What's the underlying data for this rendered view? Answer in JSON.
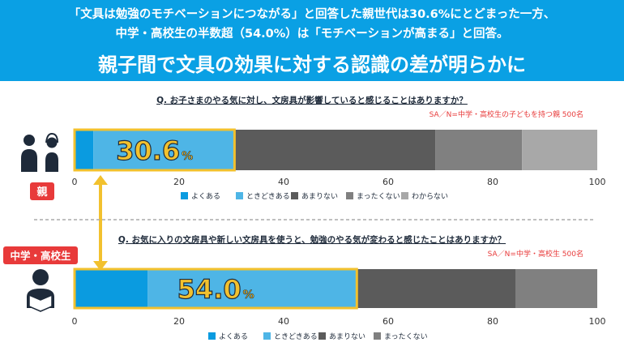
{
  "header": {
    "sub_line1": "「文具は勉強のモチベーションにつながる」と回答した親世代は30.6%にとどまった一方、",
    "sub_line2": "中学・高校生の半数超（54.0%）は「モチベーションが高まる」と回答。",
    "title": "親子間で文具の効果に対する認識の差が明らかに"
  },
  "colors": {
    "header_bg": "#0aa0e4",
    "series": [
      "#0a9be0",
      "#4eb5e6",
      "#5b5b5b",
      "#808080",
      "#a8a8a8"
    ],
    "highlight_border": "#f2c12e",
    "highlight_text": "#f2c12e",
    "badge_red": "#e83a3a"
  },
  "icons": {
    "parents": "parents-icon",
    "student": "student-reading-icon"
  },
  "chart_data": [
    {
      "type": "bar",
      "orientation": "horizontal-stacked",
      "question": "Q. お子さまのやる気に対し、文房具が影響していると感じることはありますか？",
      "note": "SA／N=中学・高校生の子どもを持つ親 500名",
      "group_label": "親",
      "xlim": [
        0,
        100
      ],
      "ticks": [
        "0",
        "20",
        "40",
        "60",
        "80",
        "100"
      ],
      "series": [
        {
          "name": "よくある",
          "value": 3.6
        },
        {
          "name": "ときどきある",
          "value": 27.0
        },
        {
          "name": "あまりない",
          "value": 38.4
        },
        {
          "name": "まったくない",
          "value": 16.6
        },
        {
          "name": "わからない",
          "value": 14.4
        }
      ],
      "highlight": {
        "label": "30.6",
        "unit": "%",
        "value": 30.6
      }
    },
    {
      "type": "bar",
      "orientation": "horizontal-stacked",
      "question": "Q. お気に入りの文房具や新しい文房具を使うと、勉強のやる気が変わると感じたことはありますか？",
      "note": "SA／N=中学・高校生 500名",
      "group_label": "中学・高校生",
      "xlim": [
        0,
        100
      ],
      "ticks": [
        "0",
        "20",
        "40",
        "60",
        "80",
        "100"
      ],
      "series": [
        {
          "name": "よくある",
          "value": 14.0
        },
        {
          "name": "ときどきある",
          "value": 40.0
        },
        {
          "name": "あまりない",
          "value": 30.4
        },
        {
          "name": "まったくない",
          "value": 15.6
        }
      ],
      "highlight": {
        "label": "54.0",
        "unit": "%",
        "value": 54.0
      }
    }
  ]
}
